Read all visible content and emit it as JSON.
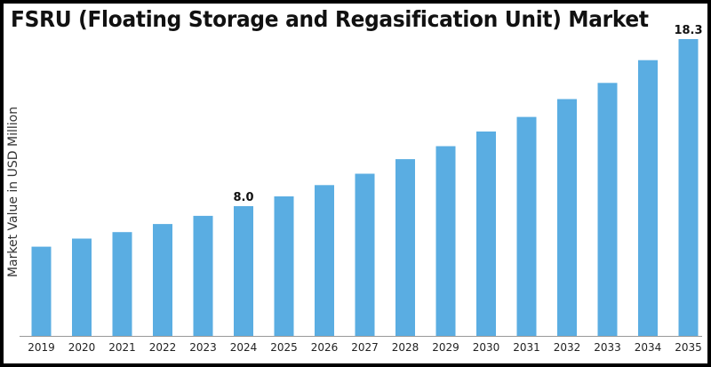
{
  "chart_data": {
    "type": "bar",
    "title": "FSRU (Floating Storage and Regasification Unit) Market",
    "xlabel": "",
    "ylabel": "Market Value in USD Million",
    "categories": [
      "2019",
      "2020",
      "2021",
      "2022",
      "2023",
      "2024",
      "2025",
      "2026",
      "2027",
      "2028",
      "2029",
      "2030",
      "2031",
      "2032",
      "2033",
      "2034",
      "2035"
    ],
    "values": [
      5.5,
      6.0,
      6.4,
      6.9,
      7.4,
      8.0,
      8.6,
      9.3,
      10.0,
      10.9,
      11.7,
      12.6,
      13.5,
      14.6,
      15.6,
      17.0,
      18.3
    ],
    "data_labels": [
      {
        "category": "2024",
        "text": "8.0"
      },
      {
        "category": "2035",
        "text": "18.3"
      }
    ],
    "ylim": [
      0,
      18.3
    ],
    "grid": false,
    "bar_color": "#5aade2"
  }
}
